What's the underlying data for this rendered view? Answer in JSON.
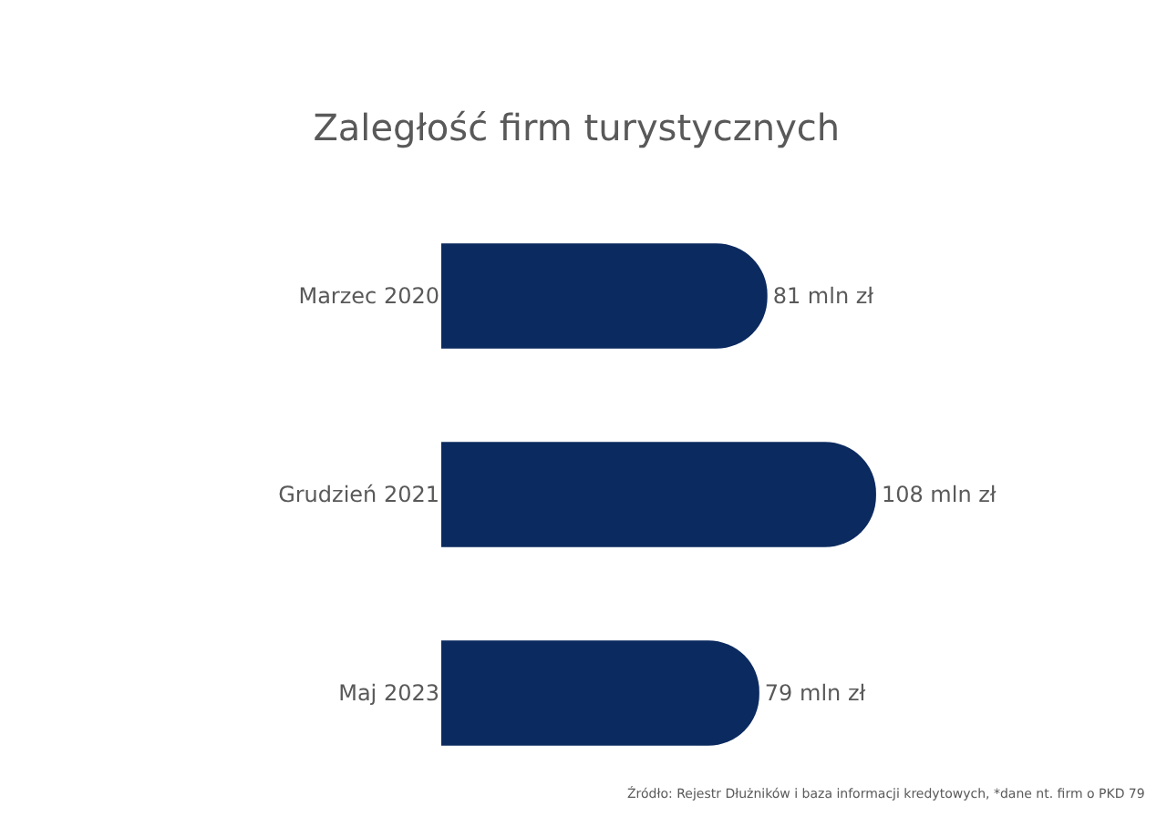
{
  "chart_data": {
    "type": "bar",
    "orientation": "horizontal",
    "title": "Zaległość firm turystycznych",
    "categories": [
      "Marzec 2020",
      "Grudzień 2021",
      "Maj 2023"
    ],
    "values": [
      81,
      108,
      79
    ],
    "color": "#0b2a5f",
    "value_labels": [
      "81 mln zł",
      "108 mln zł",
      "79 mln zł"
    ],
    "annotations": [
      "Źródło: Rejestr Dłużników i baza informacji kredytowych, *dane nt. firm o PKD 79"
    ]
  }
}
